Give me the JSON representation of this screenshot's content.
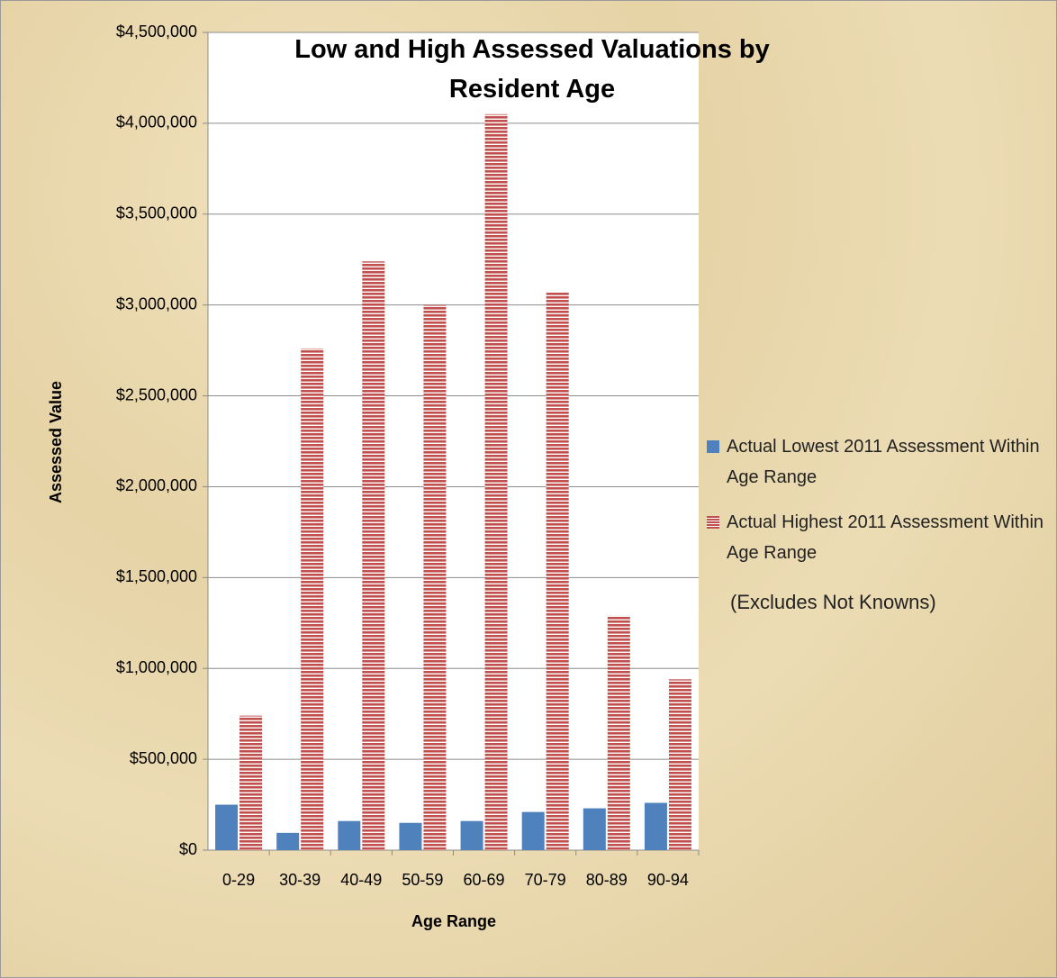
{
  "chart_data": {
    "type": "bar",
    "title": "Low and High Assessed Valuations by Resident Age",
    "x_label": "Age Range",
    "y_label": "Assessed Value",
    "annotation": "(Excludes Not Knowns)",
    "categories": [
      "0-29",
      "30-39",
      "40-49",
      "50-59",
      "60-69",
      "70-79",
      "80-89",
      "90-94"
    ],
    "series": [
      {
        "name": "Actual Lowest 2011 Assessment Within Age Range",
        "color": "#4f81bd",
        "pattern": "solid",
        "values": [
          250000,
          95000,
          160000,
          150000,
          160000,
          210000,
          230000,
          260000
        ]
      },
      {
        "name": "Actual Highest 2011 Assessment Within Age Range",
        "color": "#c0504d",
        "pattern": "horizontal-stripes",
        "values": [
          740000,
          2760000,
          3240000,
          3000000,
          4050000,
          3070000,
          1290000,
          940000
        ]
      }
    ],
    "ylim": [
      0,
      4500000
    ],
    "yticks": [
      {
        "value": 0,
        "label": "$0"
      },
      {
        "value": 500000,
        "label": "$500,000"
      },
      {
        "value": 1000000,
        "label": "$1,000,000"
      },
      {
        "value": 1500000,
        "label": "$1,500,000"
      },
      {
        "value": 2000000,
        "label": "$2,000,000"
      },
      {
        "value": 2500000,
        "label": "$2,500,000"
      },
      {
        "value": 3000000,
        "label": "$3,000,000"
      },
      {
        "value": 3500000,
        "label": "$3,500,000"
      },
      {
        "value": 4000000,
        "label": "$4,000,000"
      },
      {
        "value": 4500000,
        "label": "$4,500,000"
      }
    ],
    "grid": true,
    "legend": "right"
  }
}
